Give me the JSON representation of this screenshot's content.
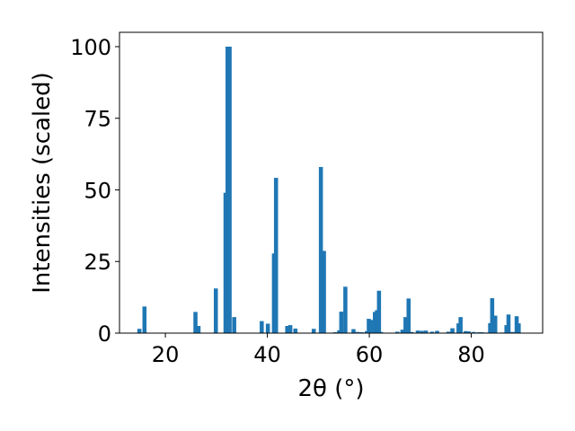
{
  "chart_data": {
    "type": "bar",
    "title": "",
    "xlabel": "2θ (°)",
    "ylabel": "Intensities (scaled)",
    "xlim": [
      11,
      94
    ],
    "ylim": [
      0,
      105
    ],
    "xticks": [
      20,
      40,
      60,
      80
    ],
    "yticks": [
      0,
      25,
      50,
      75,
      100
    ],
    "bar_width": 0.8,
    "bar_color": "#1f77b4",
    "grid": false,
    "legend": "none",
    "x": [
      14.9,
      15.9,
      25.9,
      26.5,
      29.9,
      31.8,
      32.2,
      32.6,
      33.5,
      38.9,
      40.1,
      41.3,
      41.7,
      43.9,
      44.5,
      45.5,
      49.1,
      50.5,
      51.1,
      53.3,
      54.1,
      54.5,
      55.3,
      56.9,
      57.7,
      58.5,
      59.5,
      59.9,
      60.3,
      61.1,
      61.5,
      61.9,
      62.3,
      65.5,
      66.5,
      67.1,
      67.7,
      68.3,
      69.5,
      70.3,
      71.1,
      72.3,
      73.3,
      75.5,
      76.3,
      77.5,
      77.9,
      78.9,
      79.5,
      80.5,
      81.5,
      82.1,
      83.1,
      83.7,
      84.1,
      84.7,
      86.1,
      86.9,
      87.3,
      88.1,
      88.9,
      89.3
    ],
    "values": [
      1.5,
      9.3,
      7.4,
      2.5,
      15.6,
      49.0,
      100.0,
      100.0,
      5.6,
      4.2,
      3.3,
      27.8,
      54.2,
      2.5,
      2.8,
      1.6,
      1.5,
      58.0,
      28.7,
      0.3,
      1.0,
      7.5,
      16.2,
      1.4,
      0.4,
      0.3,
      0.7,
      5.0,
      4.6,
      7.4,
      8.0,
      14.8,
      0.4,
      0.5,
      1.2,
      5.6,
      12.1,
      0.4,
      0.9,
      0.8,
      0.9,
      0.5,
      0.8,
      0.5,
      1.7,
      3.4,
      5.6,
      0.7,
      0.6,
      0.4,
      0.3,
      0.3,
      0.2,
      3.5,
      12.2,
      6.1,
      0.2,
      2.8,
      6.5,
      0.4,
      5.9,
      3.4
    ]
  }
}
